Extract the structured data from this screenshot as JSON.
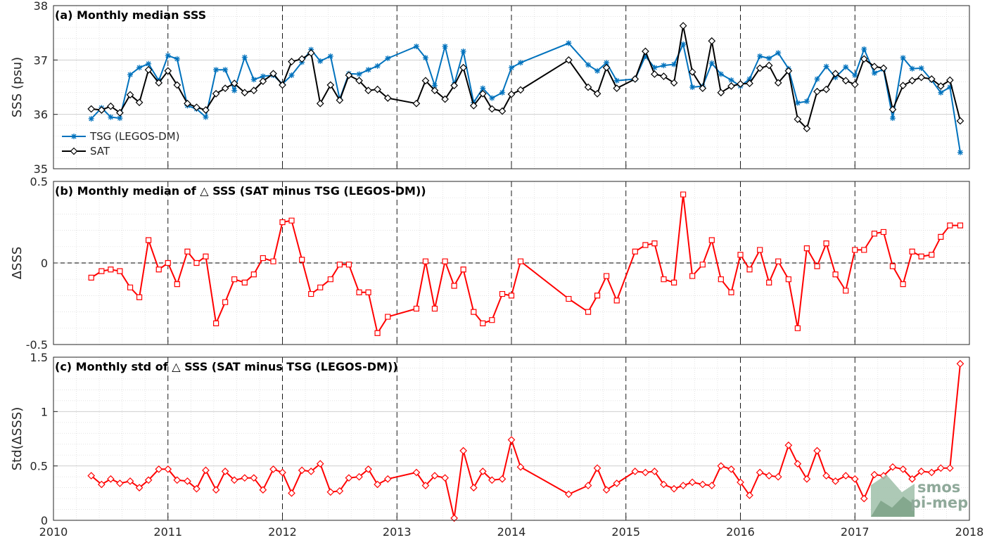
{
  "chart_data": [
    {
      "type": "line",
      "title": "(a) Monthly median SSS",
      "xlabel": "",
      "ylabel": "SSS (psu)",
      "xlim": [
        2010,
        2018
      ],
      "ylim": [
        35,
        38
      ],
      "xticks": [
        "2010",
        "2011",
        "2012",
        "2013",
        "2014",
        "2015",
        "2016",
        "2017",
        "2018"
      ],
      "yticks": [
        "35",
        "36",
        "37",
        "38"
      ],
      "legend_position": "left",
      "series": [
        {
          "name": "TSG (LEGOS-DM)",
          "color": "#0072bd",
          "marker": "star",
          "x": [
            2010.33,
            2010.42,
            2010.5,
            2010.58,
            2010.67,
            2010.75,
            2010.83,
            2010.92,
            2011.0,
            2011.08,
            2011.17,
            2011.25,
            2011.33,
            2011.42,
            2011.5,
            2011.58,
            2011.67,
            2011.75,
            2011.83,
            2011.92,
            2012.0,
            2012.08,
            2012.17,
            2012.25,
            2012.33,
            2012.42,
            2012.5,
            2012.58,
            2012.67,
            2012.75,
            2012.83,
            2012.92,
            2013.17,
            2013.25,
            2013.33,
            2013.42,
            2013.5,
            2013.58,
            2013.67,
            2013.75,
            2013.83,
            2013.92,
            2014.0,
            2014.08,
            2014.5,
            2014.67,
            2014.75,
            2014.83,
            2014.92,
            2015.08,
            2015.17,
            2015.25,
            2015.33,
            2015.42,
            2015.5,
            2015.58,
            2015.67,
            2015.75,
            2015.83,
            2015.92,
            2016.0,
            2016.08,
            2016.17,
            2016.25,
            2016.33,
            2016.42,
            2016.5,
            2016.58,
            2016.67,
            2016.75,
            2016.83,
            2016.92,
            2017.0,
            2017.08,
            2017.17,
            2017.25,
            2017.33,
            2017.42,
            2017.5,
            2017.58,
            2017.67,
            2017.75,
            2017.83,
            2017.92
          ],
          "y": [
            35.92,
            36.12,
            35.95,
            35.93,
            36.73,
            36.86,
            36.93,
            36.62,
            37.08,
            37.02,
            36.16,
            36.1,
            35.95,
            36.82,
            36.82,
            36.44,
            37.05,
            36.64,
            36.7,
            36.72,
            36.56,
            36.72,
            36.96,
            37.19,
            36.98,
            37.07,
            36.28,
            36.75,
            36.74,
            36.82,
            36.89,
            37.03,
            37.25,
            37.04,
            36.53,
            37.25,
            36.55,
            37.16,
            36.22,
            36.48,
            36.3,
            36.4,
            36.86,
            36.95,
            37.31,
            36.91,
            36.8,
            36.95,
            36.62,
            36.65,
            37.07,
            36.86,
            36.9,
            36.92,
            37.29,
            36.5,
            36.52,
            36.94,
            36.74,
            36.63,
            36.52,
            36.65,
            37.07,
            37.03,
            37.13,
            36.84,
            36.21,
            36.24,
            36.65,
            36.88,
            36.68,
            36.87,
            36.72,
            37.2,
            36.76,
            36.83,
            35.93,
            37.04,
            36.84,
            36.85,
            36.63,
            36.4,
            36.5,
            35.3
          ]
        },
        {
          "name": "SAT",
          "color": "#000000",
          "marker": "diamond",
          "x": [
            2010.33,
            2010.42,
            2010.5,
            2010.58,
            2010.67,
            2010.75,
            2010.83,
            2010.92,
            2011.0,
            2011.08,
            2011.17,
            2011.25,
            2011.33,
            2011.42,
            2011.5,
            2011.58,
            2011.67,
            2011.75,
            2011.83,
            2011.92,
            2012.0,
            2012.08,
            2012.17,
            2012.25,
            2012.33,
            2012.42,
            2012.5,
            2012.58,
            2012.67,
            2012.75,
            2012.83,
            2012.92,
            2013.17,
            2013.25,
            2013.33,
            2013.42,
            2013.5,
            2013.58,
            2013.67,
            2013.75,
            2013.83,
            2013.92,
            2014.0,
            2014.08,
            2014.5,
            2014.67,
            2014.75,
            2014.83,
            2014.92,
            2015.08,
            2015.17,
            2015.25,
            2015.33,
            2015.42,
            2015.5,
            2015.58,
            2015.67,
            2015.75,
            2015.83,
            2015.92,
            2016.0,
            2016.08,
            2016.17,
            2016.25,
            2016.33,
            2016.42,
            2016.5,
            2016.58,
            2016.67,
            2016.75,
            2016.83,
            2016.92,
            2017.0,
            2017.08,
            2017.17,
            2017.25,
            2017.33,
            2017.42,
            2017.5,
            2017.58,
            2017.67,
            2017.75,
            2017.83,
            2017.92
          ],
          "y": [
            36.1,
            36.08,
            36.15,
            36.03,
            36.36,
            36.22,
            36.82,
            36.58,
            36.8,
            36.54,
            36.2,
            36.13,
            36.08,
            36.38,
            36.48,
            36.57,
            36.4,
            36.44,
            36.61,
            36.75,
            36.54,
            36.97,
            37.02,
            37.13,
            36.2,
            36.54,
            36.26,
            36.72,
            36.62,
            36.44,
            36.46,
            36.3,
            36.2,
            36.62,
            36.44,
            36.28,
            36.53,
            36.86,
            36.16,
            36.38,
            36.1,
            36.06,
            36.37,
            36.45,
            37.0,
            36.5,
            36.38,
            36.86,
            36.48,
            36.65,
            37.16,
            36.74,
            36.7,
            36.58,
            37.63,
            36.78,
            36.48,
            37.35,
            36.4,
            36.52,
            36.56,
            36.57,
            36.85,
            36.9,
            36.58,
            36.8,
            35.91,
            35.74,
            36.42,
            36.46,
            36.75,
            36.62,
            36.55,
            37.02,
            36.88,
            36.85,
            36.09,
            36.53,
            36.62,
            36.68,
            36.65,
            36.52,
            36.63,
            35.88
          ]
        }
      ]
    },
    {
      "type": "line",
      "title": "(b) Monthly median of △ SSS (SAT minus TSG (LEGOS-DM))",
      "xlabel": "",
      "ylabel": "ΔSSS",
      "xlim": [
        2010,
        2018
      ],
      "ylim": [
        -0.5,
        0.5
      ],
      "xticks": [
        "2010",
        "2011",
        "2012",
        "2013",
        "2014",
        "2015",
        "2016",
        "2017",
        "2018"
      ],
      "yticks": [
        "-0.5",
        "0",
        "0.5"
      ],
      "zero_line": true,
      "series": [
        {
          "name": "",
          "color": "#ff0000",
          "marker": "square",
          "x": [
            2010.33,
            2010.42,
            2010.5,
            2010.58,
            2010.67,
            2010.75,
            2010.83,
            2010.92,
            2011.0,
            2011.08,
            2011.17,
            2011.25,
            2011.33,
            2011.42,
            2011.5,
            2011.58,
            2011.67,
            2011.75,
            2011.83,
            2011.92,
            2012.0,
            2012.08,
            2012.17,
            2012.25,
            2012.33,
            2012.42,
            2012.5,
            2012.58,
            2012.67,
            2012.75,
            2012.83,
            2012.92,
            2013.17,
            2013.25,
            2013.33,
            2013.42,
            2013.5,
            2013.58,
            2013.67,
            2013.75,
            2013.83,
            2013.92,
            2014.0,
            2014.08,
            2014.5,
            2014.67,
            2014.75,
            2014.83,
            2014.92,
            2015.08,
            2015.17,
            2015.25,
            2015.33,
            2015.42,
            2015.5,
            2015.58,
            2015.67,
            2015.75,
            2015.83,
            2015.92,
            2016.0,
            2016.08,
            2016.17,
            2016.25,
            2016.33,
            2016.42,
            2016.5,
            2016.58,
            2016.67,
            2016.75,
            2016.83,
            2016.92,
            2017.0,
            2017.08,
            2017.17,
            2017.25,
            2017.33,
            2017.42,
            2017.5,
            2017.58,
            2017.67,
            2017.75,
            2017.83,
            2017.92
          ],
          "y": [
            -0.09,
            -0.05,
            -0.04,
            -0.05,
            -0.15,
            -0.21,
            0.14,
            -0.04,
            0.0,
            -0.13,
            0.07,
            0.0,
            0.04,
            -0.37,
            -0.24,
            -0.1,
            -0.12,
            -0.07,
            0.03,
            0.01,
            0.25,
            0.26,
            0.02,
            -0.19,
            -0.15,
            -0.1,
            -0.01,
            -0.01,
            -0.18,
            -0.18,
            -0.43,
            -0.33,
            -0.28,
            0.01,
            -0.28,
            0.01,
            -0.14,
            -0.04,
            -0.3,
            -0.37,
            -0.35,
            -0.19,
            -0.2,
            0.01,
            -0.22,
            -0.3,
            -0.2,
            -0.08,
            -0.23,
            0.07,
            0.11,
            0.12,
            -0.1,
            -0.12,
            0.42,
            -0.08,
            -0.01,
            0.14,
            -0.1,
            -0.18,
            0.05,
            -0.04,
            0.08,
            -0.12,
            0.01,
            -0.1,
            -0.4,
            0.09,
            -0.02,
            0.12,
            -0.07,
            -0.17,
            0.08,
            0.08,
            0.18,
            0.19,
            -0.02,
            -0.13,
            0.07,
            0.04,
            0.05,
            0.16,
            0.23,
            0.23
          ]
        }
      ]
    },
    {
      "type": "line",
      "title": "(c) Monthly std of △ SSS (SAT minus TSG (LEGOS-DM))",
      "xlabel": "",
      "ylabel": "Std(ΔSSS)",
      "xlim": [
        2010,
        2018
      ],
      "ylim": [
        0,
        1.5
      ],
      "xticks": [
        "2010",
        "2011",
        "2012",
        "2013",
        "2014",
        "2015",
        "2016",
        "2017",
        "2018"
      ],
      "yticks": [
        "0",
        "0.5",
        "1",
        "1.5"
      ],
      "series": [
        {
          "name": "",
          "color": "#ff0000",
          "marker": "diamond",
          "x": [
            2010.33,
            2010.42,
            2010.5,
            2010.58,
            2010.67,
            2010.75,
            2010.83,
            2010.92,
            2011.0,
            2011.08,
            2011.17,
            2011.25,
            2011.33,
            2011.42,
            2011.5,
            2011.58,
            2011.67,
            2011.75,
            2011.83,
            2011.92,
            2012.0,
            2012.08,
            2012.17,
            2012.25,
            2012.33,
            2012.42,
            2012.5,
            2012.58,
            2012.67,
            2012.75,
            2012.83,
            2012.92,
            2013.17,
            2013.25,
            2013.33,
            2013.42,
            2013.5,
            2013.58,
            2013.67,
            2013.75,
            2013.83,
            2013.92,
            2014.0,
            2014.08,
            2014.5,
            2014.67,
            2014.75,
            2014.83,
            2014.92,
            2015.08,
            2015.17,
            2015.25,
            2015.33,
            2015.42,
            2015.5,
            2015.58,
            2015.67,
            2015.75,
            2015.83,
            2015.92,
            2016.0,
            2016.08,
            2016.17,
            2016.25,
            2016.33,
            2016.42,
            2016.5,
            2016.58,
            2016.67,
            2016.75,
            2016.83,
            2016.92,
            2017.0,
            2017.08,
            2017.17,
            2017.25,
            2017.33,
            2017.42,
            2017.5,
            2017.58,
            2017.67,
            2017.75,
            2017.83,
            2017.92
          ],
          "y": [
            0.41,
            0.33,
            0.38,
            0.34,
            0.36,
            0.3,
            0.37,
            0.47,
            0.47,
            0.37,
            0.36,
            0.29,
            0.46,
            0.28,
            0.45,
            0.37,
            0.39,
            0.39,
            0.28,
            0.47,
            0.44,
            0.25,
            0.46,
            0.45,
            0.52,
            0.26,
            0.27,
            0.39,
            0.4,
            0.47,
            0.33,
            0.38,
            0.44,
            0.32,
            0.41,
            0.39,
            0.02,
            0.64,
            0.3,
            0.45,
            0.37,
            0.38,
            0.74,
            0.49,
            0.24,
            0.32,
            0.48,
            0.28,
            0.34,
            0.45,
            0.44,
            0.45,
            0.33,
            0.29,
            0.32,
            0.35,
            0.33,
            0.32,
            0.5,
            0.47,
            0.35,
            0.23,
            0.44,
            0.41,
            0.4,
            0.69,
            0.52,
            0.38,
            0.64,
            0.41,
            0.36,
            0.41,
            0.38,
            0.2,
            0.42,
            0.41,
            0.49,
            0.47,
            0.38,
            0.45,
            0.44,
            0.48,
            0.48,
            1.44
          ]
        }
      ]
    }
  ],
  "logo": {
    "line1": "smos",
    "line2": "pi-mep",
    "color": "#8fa99a"
  }
}
